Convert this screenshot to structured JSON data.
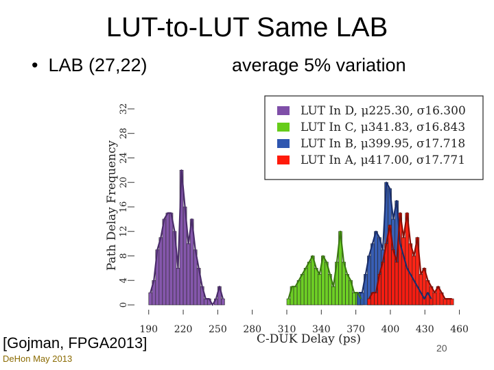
{
  "slide": {
    "title": "LUT-to-LUT Same LAB",
    "bullet": "LAB (27,22)",
    "bullet_marker": "•",
    "note": "average 5% variation",
    "citation": "[Gojman, FPGA2013]",
    "footer": "DeHon May 2013",
    "page_number": "20"
  },
  "chart_data": {
    "type": "histogram",
    "xlabel": "C-DUK Delay (ps)",
    "ylabel": "Path Delay Frequency",
    "xlim": [
      183,
      468
    ],
    "ylim": [
      0,
      33
    ],
    "bin_width": 3,
    "x_ticks": [
      190,
      220,
      250,
      280,
      310,
      340,
      370,
      400,
      430,
      460
    ],
    "y_ticks": [
      0,
      4,
      8,
      12,
      16,
      20,
      24,
      28,
      32
    ],
    "legend_position": "top-right",
    "series": [
      {
        "name": "LUT In D",
        "legend_text": "LUT In D, μ225.30, σ16.300",
        "color": "#7f4fa8",
        "line_color": "#4a2c6a",
        "start": 190,
        "values": [
          2,
          4,
          9,
          11,
          14,
          15,
          15,
          12,
          6,
          22,
          16,
          10,
          14,
          9,
          6,
          3,
          1,
          1,
          0,
          1,
          3,
          1
        ]
      },
      {
        "name": "LUT In C",
        "legend_text": "LUT In C, μ341.83, σ16.843",
        "color": "#66cc1a",
        "line_color": "#3a7a10",
        "start": 310,
        "values": [
          1,
          3,
          3,
          4,
          5,
          6,
          7,
          8,
          6,
          5,
          8,
          7,
          5,
          3,
          7,
          12,
          7,
          5,
          4,
          2,
          2,
          1
        ]
      },
      {
        "name": "LUT In B",
        "legend_text": "LUT In B, μ399.95, σ17.718",
        "color": "#2e56b0",
        "line_color": "#1a2e6a",
        "start": 371,
        "values": [
          2,
          2,
          5,
          8,
          10,
          12,
          11,
          9,
          20,
          19,
          14,
          17,
          10,
          8,
          6,
          5,
          4,
          3,
          2,
          1,
          2,
          1
        ]
      },
      {
        "name": "LUT In A",
        "legend_text": "LUT In A, μ417.00, σ17.771",
        "color": "#ff1a0a",
        "line_color": "#8a0d05",
        "start": 380,
        "values": [
          1,
          2,
          2,
          5,
          7,
          10,
          13,
          9,
          7,
          15,
          11,
          15,
          10,
          8,
          11,
          5,
          6,
          4,
          3,
          2,
          3,
          2,
          1,
          1,
          1
        ]
      }
    ]
  }
}
